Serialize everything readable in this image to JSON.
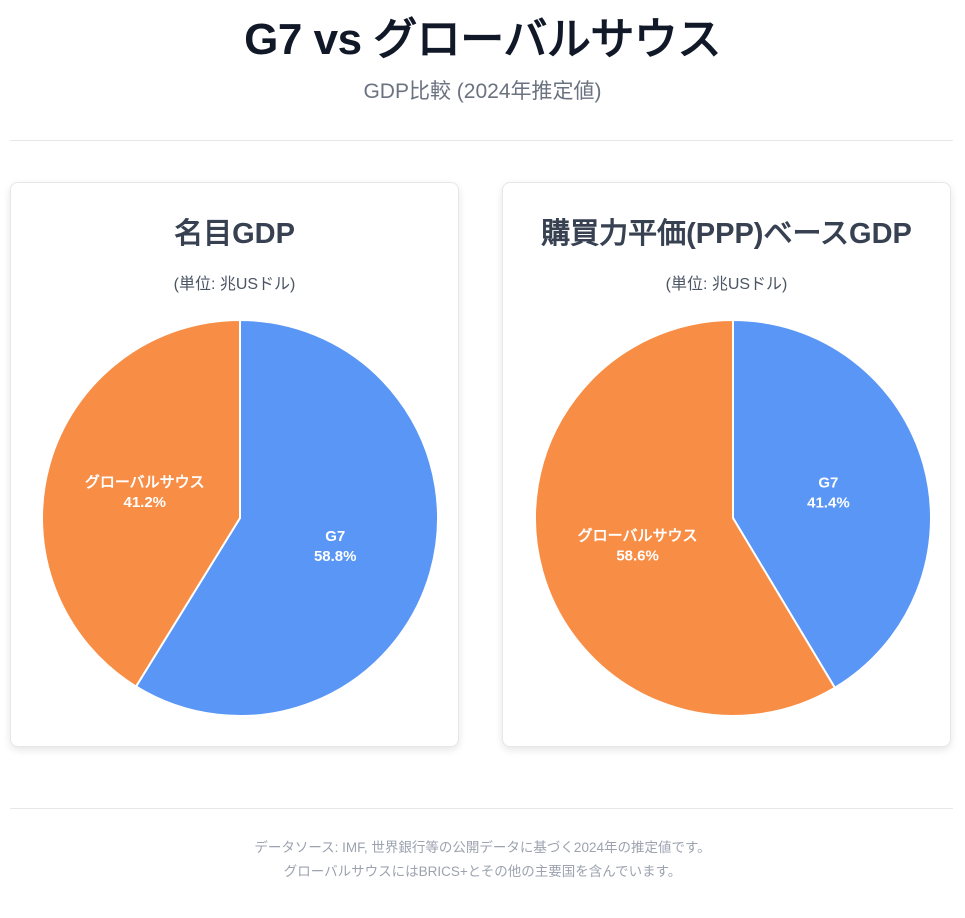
{
  "header": {
    "title": "G7 vs グローバルサウス",
    "subtitle": "GDP比較 (2024年推定値)"
  },
  "colors": {
    "g7": "#5a96f5",
    "global_south": "#f88d45"
  },
  "chart_data": [
    {
      "type": "pie",
      "title": "名目GDP",
      "subtitle": "(単位: 兆USドル)",
      "slices": [
        {
          "label": "G7",
          "value": 58.8,
          "display": "58.8%",
          "color": "#5a96f5"
        },
        {
          "label": "グローバルサウス",
          "value": 41.2,
          "display": "41.2%",
          "color": "#f88d45"
        }
      ],
      "legend": "none"
    },
    {
      "type": "pie",
      "title": "購買力平価(PPP)ベースGDP",
      "subtitle": "(単位: 兆USドル)",
      "slices": [
        {
          "label": "G7",
          "value": 41.4,
          "display": "41.4%",
          "color": "#5a96f5"
        },
        {
          "label": "グローバルサウス",
          "value": 58.6,
          "display": "58.6%",
          "color": "#f88d45"
        }
      ],
      "legend": "none"
    }
  ],
  "footer": {
    "line1": "データソース: IMF, 世界銀行等の公開データに基づく2024年の推定値です。",
    "line2": "グローバルサウスにはBRICS+とその他の主要国を含んでいます。"
  }
}
